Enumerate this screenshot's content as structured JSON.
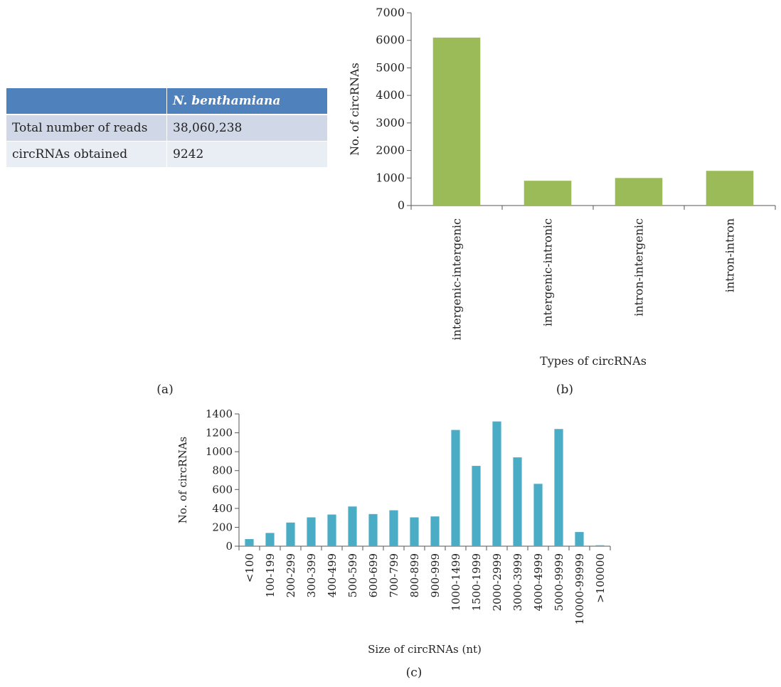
{
  "table": {
    "header": [
      "",
      "N. benthamiana"
    ],
    "rows": [
      [
        "Total number of reads",
        "38,060,238"
      ],
      [
        "circRNAs obtained",
        "9242"
      ]
    ]
  },
  "panel_labels": {
    "a": "(a)",
    "b": "(b)",
    "c": "(c)"
  },
  "chart_data": [
    {
      "type": "bar",
      "panel": "b",
      "title": "",
      "xlabel": "Types of circRNAs",
      "ylabel": "No. of circRNAs",
      "ylim": [
        0,
        7000
      ],
      "yticks": [
        0,
        1000,
        2000,
        3000,
        4000,
        5000,
        6000,
        7000
      ],
      "categories": [
        "intergenic-intergenic",
        "intergenic-intronic",
        "intron-intergenic",
        "intron-intron"
      ],
      "values": [
        6100,
        900,
        1000,
        1260
      ],
      "bar_color": "#9bbb59",
      "grid": false,
      "legend": "none"
    },
    {
      "type": "bar",
      "panel": "c",
      "title": "",
      "xlabel": "Size of circRNAs (nt)",
      "ylabel": "No. of circRNAs",
      "ylim": [
        0,
        1400
      ],
      "yticks": [
        0,
        200,
        400,
        600,
        800,
        1000,
        1200,
        1400
      ],
      "categories": [
        "<100",
        "100-199",
        "200-299",
        "300-399",
        "400-499",
        "500-599",
        "600-699",
        "700-799",
        "800-899",
        "900-999",
        "1000-1499",
        "1500-1999",
        "2000-2999",
        "3000-3999",
        "4000-4999",
        "5000-9999",
        "10000-99999",
        ">100000"
      ],
      "values": [
        75,
        140,
        250,
        305,
        335,
        420,
        340,
        380,
        305,
        315,
        1230,
        850,
        1320,
        940,
        660,
        1240,
        150,
        10
      ],
      "bar_color": "#4bacc6",
      "grid": false,
      "legend": "none"
    }
  ]
}
